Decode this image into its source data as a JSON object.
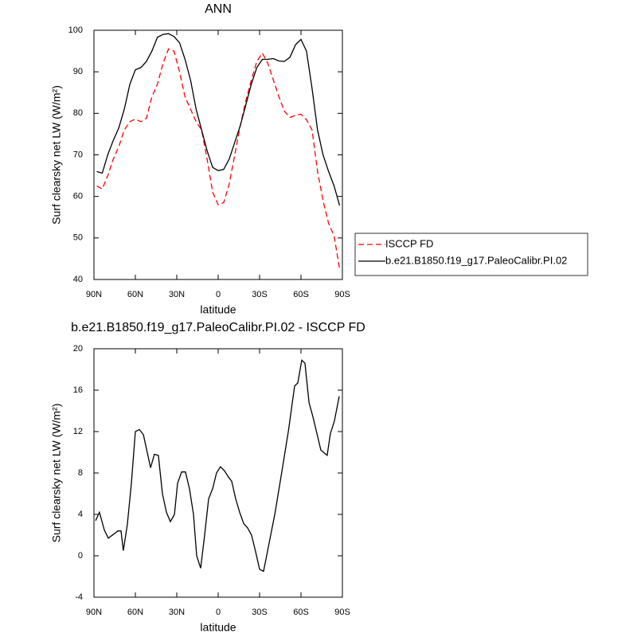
{
  "chart_data": [
    {
      "type": "line",
      "title": "ANN",
      "x_label": "latitude",
      "y_label": "Surf clearsky net LW (W/m²)",
      "xlim": [
        90,
        -90
      ],
      "xticks": [
        {
          "value": 90,
          "label": "90N"
        },
        {
          "value": 60,
          "label": "60N"
        },
        {
          "value": 30,
          "label": "30N"
        },
        0,
        {
          "value": -30,
          "label": "30S"
        },
        {
          "value": -60,
          "label": "60S"
        },
        {
          "value": -90,
          "label": "90S"
        }
      ],
      "ylim": [
        40,
        100
      ],
      "yticks": [
        40,
        50,
        60,
        70,
        80,
        90,
        100
      ],
      "legend": "right",
      "x": [
        88,
        84,
        80,
        76,
        72,
        68,
        64,
        60,
        56,
        52,
        48,
        44,
        40,
        36,
        32,
        28,
        24,
        20,
        16,
        12,
        8,
        4,
        0,
        -4,
        -8,
        -12,
        -16,
        -20,
        -24,
        -28,
        -32,
        -36,
        -40,
        -44,
        -48,
        -52,
        -56,
        -60,
        -64,
        -68,
        -72,
        -76,
        -80,
        -84,
        -88
      ],
      "series": [
        {
          "name": "ISCCP FD",
          "color": "#ff0000",
          "dashed": true,
          "values": [
            62.5,
            61.8,
            65,
            69,
            72,
            76,
            78,
            78.6,
            78,
            78.8,
            84,
            87,
            92,
            95.5,
            95,
            90,
            84,
            81,
            78,
            76,
            69,
            61,
            58,
            58.5,
            63,
            70,
            77,
            83,
            88,
            92.5,
            94.5,
            92,
            88,
            84,
            80.5,
            79,
            79.5,
            79.8,
            78.5,
            76,
            66,
            59,
            53.5,
            50.5,
            42.5
          ]
        },
        {
          "name": "b.e21.B1850.f19_g17.PaleoCalibr.PI.02",
          "color": "#000000",
          "dashed": false,
          "values": [
            66,
            65.6,
            70,
            73.5,
            76.5,
            81,
            87,
            90.5,
            91,
            92.5,
            95,
            98.3,
            99,
            99.2,
            98.5,
            97,
            93,
            88,
            81,
            76,
            71,
            67,
            66.2,
            66.5,
            69,
            73,
            77,
            82,
            87,
            91,
            93,
            93,
            93.2,
            92.6,
            92.5,
            93.5,
            96.5,
            97.8,
            95,
            86,
            76,
            70,
            66,
            62.5,
            57.8
          ]
        }
      ]
    },
    {
      "type": "line",
      "title": "b.e21.B1850.f19_g17.PaleoCalibr.PI.02 - ISCCP FD",
      "x_label": "latitude",
      "y_label": "Surf clearsky net LW (W/m²)",
      "xlim": [
        90,
        -90
      ],
      "xticks": [
        {
          "value": 90,
          "label": "90N"
        },
        {
          "value": 60,
          "label": "60N"
        },
        {
          "value": 30,
          "label": "30N"
        },
        0,
        {
          "value": -30,
          "label": "30S"
        },
        {
          "value": -60,
          "label": "60S"
        },
        {
          "value": -90,
          "label": "90S"
        }
      ],
      "ylim": [
        -4,
        20
      ],
      "yticks": [
        -4,
        0,
        4,
        8,
        12,
        16,
        20
      ],
      "x": [
        88.8,
        86,
        82.5,
        79.6,
        75.6,
        72.7,
        70.4,
        68.7,
        65.8,
        62.9,
        60,
        57.1,
        54.2,
        49,
        46.2,
        43.3,
        40.4,
        37.5,
        34.6,
        31.7,
        29.4,
        26.5,
        23.7,
        20.8,
        17.9,
        15.6,
        12.7,
        9.8,
        6.9,
        4,
        1.2,
        -1.7,
        -4.6,
        -7.5,
        -9.8,
        -12.7,
        -15.6,
        -18.5,
        -21.3,
        -24.2,
        -27.1,
        -30,
        -32.9,
        -41,
        -46,
        -50.8,
        -55.4,
        -57.7,
        -60.6,
        -62.9,
        -65.8,
        -68.7,
        -74.4,
        -79,
        -81.3,
        -84.2,
        -87.7
      ],
      "series": [
        {
          "name": null,
          "color": "#000000",
          "dashed": false,
          "values": [
            3.4,
            4.2,
            2.5,
            1.7,
            2.1,
            2.4,
            2.4,
            0.5,
            3,
            7,
            12,
            12.2,
            11.7,
            8.5,
            9.8,
            9.7,
            6,
            4.2,
            3.3,
            4,
            7,
            8.1,
            8.1,
            6.5,
            4,
            0,
            -1.2,
            2,
            5.5,
            6.5,
            8,
            8.6,
            8.2,
            7.6,
            7.2,
            5.5,
            4.2,
            3.1,
            2.7,
            2,
            0.4,
            -1.3,
            -1.5,
            4,
            8,
            12,
            16.4,
            16.7,
            18.9,
            18.6,
            14.8,
            13.4,
            10.2,
            9.7,
            11.8,
            13,
            15.4
          ]
        }
      ]
    }
  ]
}
